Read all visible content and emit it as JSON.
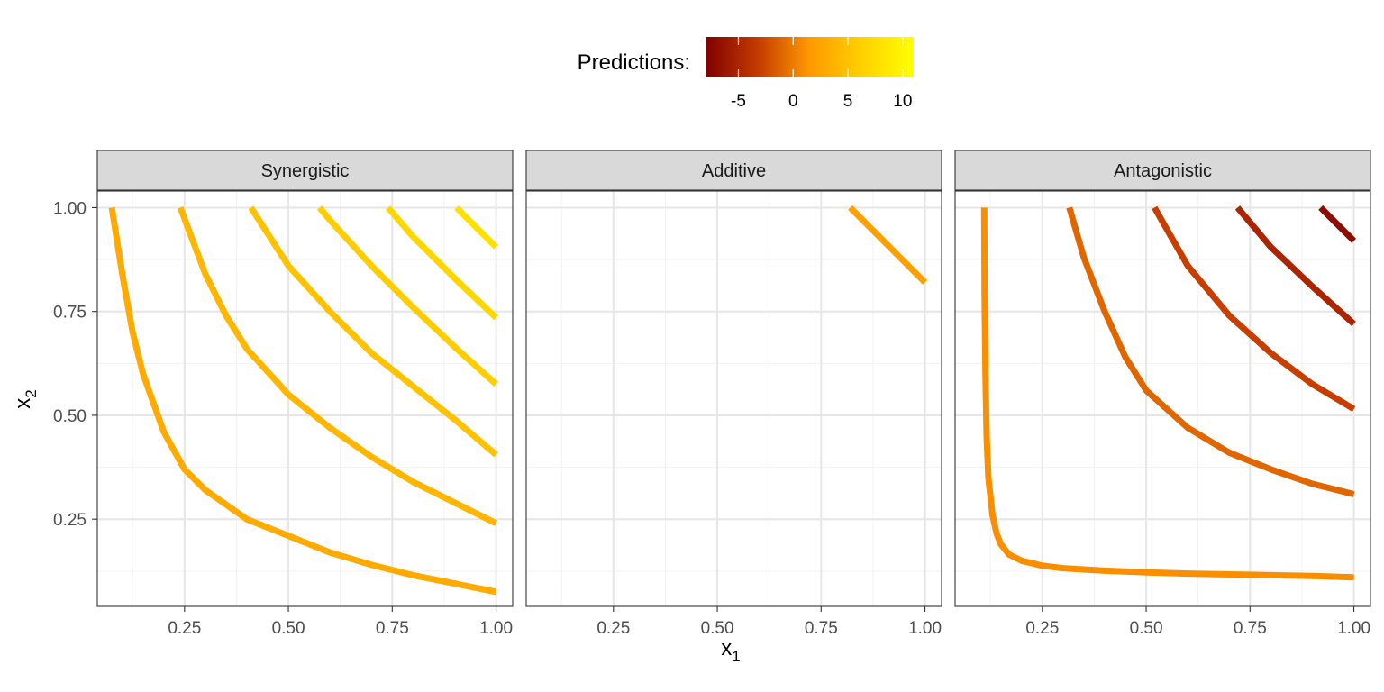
{
  "chart_data": {
    "type": "line",
    "chart_subtype": "faceted contour plot",
    "xlabel": "x",
    "xlabel_subscript": "1",
    "ylabel": "x",
    "ylabel_subscript": "2",
    "xlim": [
      0.04,
      1.04
    ],
    "ylim": [
      0.04,
      1.04
    ],
    "x_ticks": [
      0.25,
      0.5,
      0.75,
      1.0
    ],
    "x_tick_labels": [
      "0.25",
      "0.50",
      "0.75",
      "1.00"
    ],
    "y_ticks": [
      0.25,
      0.5,
      0.75,
      1.0
    ],
    "y_tick_labels": [
      "0.25",
      "0.50",
      "0.75",
      "1.00"
    ],
    "grid": true,
    "legend": {
      "title": "Predictions:",
      "position": "top",
      "type": "colorbar",
      "range": [
        -8,
        11
      ],
      "ticks": [
        -5,
        0,
        5,
        10
      ],
      "tick_labels": [
        "-5",
        "0",
        "5",
        "10"
      ],
      "palette": [
        "#7f0000",
        "#c43a00",
        "#ff9900",
        "#ffd000",
        "#ffff00"
      ]
    },
    "panels": [
      {
        "label": "Synergistic",
        "contours": [
          {
            "level": 3,
            "points": [
              [
                0.075,
                1.0
              ],
              [
                0.1,
                0.84
              ],
              [
                0.125,
                0.7
              ],
              [
                0.15,
                0.6
              ],
              [
                0.2,
                0.46
              ],
              [
                0.25,
                0.37
              ],
              [
                0.3,
                0.32
              ],
              [
                0.4,
                0.25
              ],
              [
                0.5,
                0.21
              ],
              [
                0.6,
                0.17
              ],
              [
                0.7,
                0.14
              ],
              [
                0.8,
                0.115
              ],
              [
                0.9,
                0.095
              ],
              [
                1.0,
                0.075
              ]
            ]
          },
          {
            "level": 4,
            "points": [
              [
                0.24,
                1.0
              ],
              [
                0.3,
                0.84
              ],
              [
                0.35,
                0.74
              ],
              [
                0.4,
                0.66
              ],
              [
                0.5,
                0.55
              ],
              [
                0.6,
                0.47
              ],
              [
                0.7,
                0.4
              ],
              [
                0.8,
                0.34
              ],
              [
                0.9,
                0.29
              ],
              [
                1.0,
                0.24
              ]
            ]
          },
          {
            "level": 5,
            "points": [
              [
                0.41,
                1.0
              ],
              [
                0.5,
                0.86
              ],
              [
                0.6,
                0.75
              ],
              [
                0.7,
                0.65
              ],
              [
                0.8,
                0.57
              ],
              [
                0.9,
                0.49
              ],
              [
                1.0,
                0.405
              ]
            ]
          },
          {
            "level": 6,
            "points": [
              [
                0.575,
                1.0
              ],
              [
                0.6,
                0.97
              ],
              [
                0.7,
                0.86
              ],
              [
                0.8,
                0.76
              ],
              [
                0.9,
                0.665
              ],
              [
                1.0,
                0.575
              ]
            ]
          },
          {
            "level": 7,
            "points": [
              [
                0.74,
                1.0
              ],
              [
                0.8,
                0.93
              ],
              [
                0.9,
                0.83
              ],
              [
                1.0,
                0.735
              ]
            ]
          },
          {
            "level": 8,
            "points": [
              [
                0.905,
                1.0
              ],
              [
                0.95,
                0.955
              ],
              [
                1.0,
                0.905
              ]
            ]
          }
        ]
      },
      {
        "label": "Additive",
        "contours": [
          {
            "level": 2,
            "points": [
              [
                0.82,
                1.0
              ],
              [
                1.0,
                0.82
              ]
            ]
          }
        ]
      },
      {
        "label": "Antagonistic",
        "contours": [
          {
            "level": 1,
            "points": [
              [
                0.11,
                1.0
              ],
              [
                0.111,
                0.8
              ],
              [
                0.113,
                0.6
              ],
              [
                0.116,
                0.45
              ],
              [
                0.12,
                0.35
              ],
              [
                0.13,
                0.26
              ],
              [
                0.14,
                0.215
              ],
              [
                0.15,
                0.19
              ],
              [
                0.17,
                0.165
              ],
              [
                0.2,
                0.15
              ],
              [
                0.25,
                0.138
              ],
              [
                0.3,
                0.132
              ],
              [
                0.4,
                0.126
              ],
              [
                0.5,
                0.122
              ],
              [
                0.6,
                0.119
              ],
              [
                0.7,
                0.117
              ],
              [
                0.8,
                0.115
              ],
              [
                0.9,
                0.113
              ],
              [
                1.0,
                0.11
              ]
            ]
          },
          {
            "level": -1,
            "points": [
              [
                0.315,
                1.0
              ],
              [
                0.35,
                0.88
              ],
              [
                0.4,
                0.75
              ],
              [
                0.45,
                0.64
              ],
              [
                0.5,
                0.56
              ],
              [
                0.6,
                0.47
              ],
              [
                0.7,
                0.41
              ],
              [
                0.8,
                0.37
              ],
              [
                0.9,
                0.335
              ],
              [
                1.0,
                0.31
              ]
            ]
          },
          {
            "level": -3,
            "points": [
              [
                0.52,
                1.0
              ],
              [
                0.6,
                0.86
              ],
              [
                0.7,
                0.74
              ],
              [
                0.8,
                0.65
              ],
              [
                0.9,
                0.575
              ],
              [
                1.0,
                0.515
              ]
            ]
          },
          {
            "level": -5,
            "points": [
              [
                0.72,
                1.0
              ],
              [
                0.8,
                0.905
              ],
              [
                0.9,
                0.81
              ],
              [
                1.0,
                0.72
              ]
            ]
          },
          {
            "level": -7,
            "points": [
              [
                0.92,
                1.0
              ],
              [
                0.96,
                0.96
              ],
              [
                1.0,
                0.92
              ]
            ]
          }
        ]
      }
    ]
  }
}
